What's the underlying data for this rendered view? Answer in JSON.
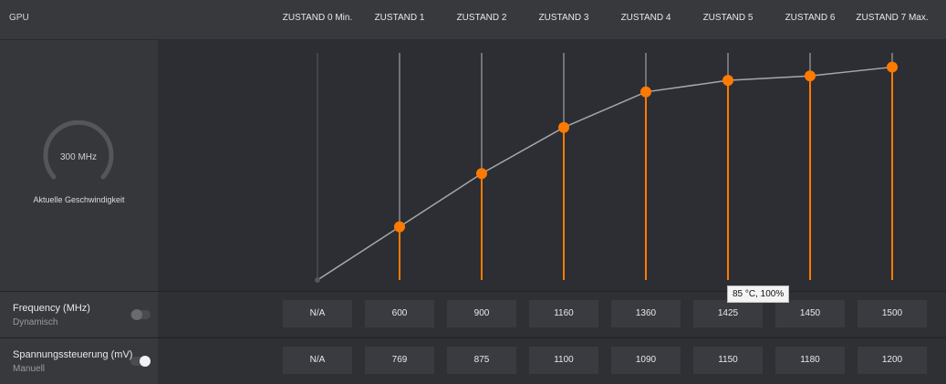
{
  "header": {
    "gpu_label": "GPU",
    "states": [
      "ZUSTAND 0 Min.",
      "ZUSTAND 1",
      "ZUSTAND 2",
      "ZUSTAND 3",
      "ZUSTAND 4",
      "ZUSTAND 5",
      "ZUSTAND 6",
      "ZUSTAND 7 Max."
    ]
  },
  "gauge": {
    "value": "300 MHz",
    "caption": "Aktuelle Geschwindigkeit"
  },
  "frequency_row": {
    "title": "Frequency (MHz)",
    "mode": "Dynamisch",
    "toggle_on": false,
    "values": [
      "N/A",
      "600",
      "900",
      "1160",
      "1360",
      "1425",
      "1450",
      "1500"
    ]
  },
  "voltage_row": {
    "title": "Spannungssteuerung (mV)",
    "mode": "Manuell",
    "toggle_on": true,
    "values": [
      "N/A",
      "769",
      "875",
      "1100",
      "1090",
      "1150",
      "1180",
      "1200"
    ]
  },
  "tooltip": "85 °C, 100%",
  "colors": {
    "accent": "#ff7a00",
    "line": "#a8a8ab",
    "inactive_stem": "#8a8a8d"
  },
  "chart_data": {
    "type": "line",
    "categories": [
      "ZUSTAND 0 Min.",
      "ZUSTAND 1",
      "ZUSTAND 2",
      "ZUSTAND 3",
      "ZUSTAND 4",
      "ZUSTAND 5",
      "ZUSTAND 6",
      "ZUSTAND 7 Max."
    ],
    "values": [
      300,
      600,
      900,
      1160,
      1360,
      1425,
      1450,
      1500
    ],
    "ylim": [
      300,
      1580
    ]
  }
}
